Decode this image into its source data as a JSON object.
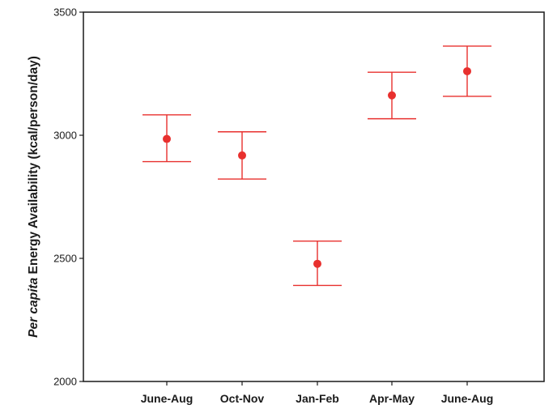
{
  "chart_data": {
    "type": "errorbar",
    "ylabel_italic": "Per capita",
    "ylabel_rest": " Energy Availability (kcal/person/day)",
    "xlabel": "",
    "ylim": [
      2000,
      3500
    ],
    "yticks": [
      2000,
      2500,
      3000,
      3500
    ],
    "categories": [
      "June-Aug",
      "Oct-Nov",
      "Jan-Feb",
      "Apr-May",
      "June-Aug"
    ],
    "values": [
      2985,
      2918,
      2478,
      3162,
      3260
    ],
    "lower": [
      2893,
      2822,
      2390,
      3067,
      3158
    ],
    "upper": [
      3083,
      3014,
      2570,
      3256,
      3362
    ],
    "grid": false,
    "legend": "none",
    "color": "#e8302e"
  }
}
